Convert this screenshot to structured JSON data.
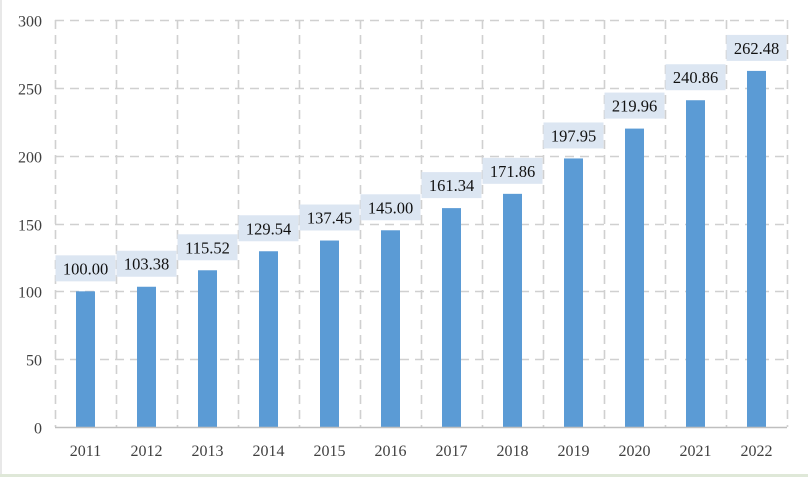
{
  "chart_data": {
    "type": "bar",
    "title": "",
    "xlabel": "",
    "ylabel": "",
    "categories": [
      "2011",
      "2012",
      "2013",
      "2014",
      "2015",
      "2016",
      "2017",
      "2018",
      "2019",
      "2020",
      "2021",
      "2022"
    ],
    "values": [
      100.0,
      103.38,
      115.52,
      129.54,
      137.45,
      145.0,
      161.34,
      171.86,
      197.95,
      219.96,
      240.86,
      262.48
    ],
    "value_labels": [
      "100.00",
      "103.38",
      "115.52",
      "129.54",
      "137.45",
      "145.00",
      "161.34",
      "171.86",
      "197.95",
      "219.96",
      "240.86",
      "262.48"
    ],
    "ylim": [
      0,
      300
    ],
    "yticks": [
      0,
      50,
      100,
      150,
      200,
      250,
      300
    ],
    "grid": true,
    "grid_style": "dashed",
    "legend": null,
    "colors": {
      "bar": "#5b9bd5",
      "label_bg": "#dce6f2",
      "grid": "#d0d0d0",
      "axis": "#bfbfbf",
      "tick_text": "#404040"
    }
  }
}
